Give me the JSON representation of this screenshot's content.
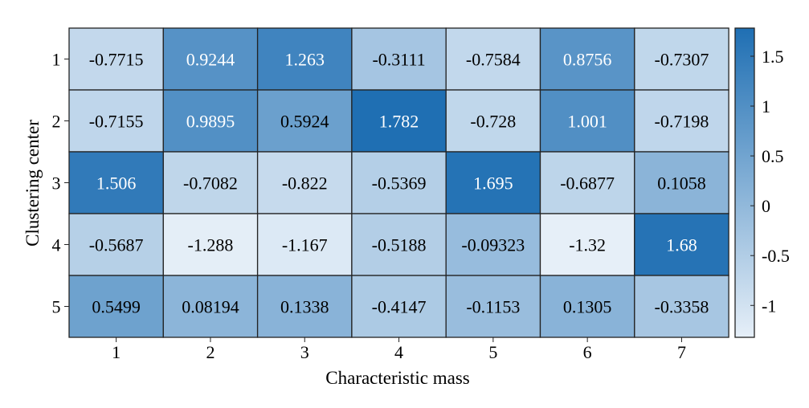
{
  "chart_data": {
    "type": "heatmap",
    "xlabel": "Characteristic mass",
    "ylabel": "Clustering center",
    "x_categories": [
      "1",
      "2",
      "3",
      "4",
      "5",
      "6",
      "7"
    ],
    "y_categories": [
      "1",
      "2",
      "3",
      "4",
      "5"
    ],
    "values": [
      [
        -0.7715,
        0.9244,
        1.263,
        -0.3111,
        -0.7584,
        0.8756,
        -0.7307
      ],
      [
        -0.7155,
        0.9895,
        0.5924,
        1.782,
        -0.728,
        1.001,
        -0.7198
      ],
      [
        1.506,
        -0.7082,
        -0.822,
        -0.5369,
        1.695,
        -0.6877,
        0.1058
      ],
      [
        -0.5687,
        -1.288,
        -1.167,
        -0.5188,
        -0.09323,
        -1.32,
        1.68
      ],
      [
        0.5499,
        0.08194,
        0.1338,
        -0.4147,
        -0.1153,
        0.1305,
        -0.3358
      ]
    ],
    "value_labels": [
      [
        "-0.7715",
        "0.9244",
        "1.263",
        "-0.3111",
        "-0.7584",
        "0.8756",
        "-0.7307"
      ],
      [
        "-0.7155",
        "0.9895",
        "0.5924",
        "1.782",
        "-0.728",
        "1.001",
        "-0.7198"
      ],
      [
        "1.506",
        "-0.7082",
        "-0.822",
        "-0.5369",
        "1.695",
        "-0.6877",
        "0.1058"
      ],
      [
        "-0.5687",
        "-1.288",
        "-1.167",
        "-0.5188",
        "-0.09323",
        "-1.32",
        "1.68"
      ],
      [
        "0.5499",
        "0.08194",
        "0.1338",
        "-0.4147",
        "-0.1153",
        "0.1305",
        "-0.3358"
      ]
    ],
    "colorbar": {
      "range": [
        -1.32,
        1.782
      ],
      "ticks": [
        -1,
        -0.5,
        0,
        0.5,
        1,
        1.5
      ],
      "tick_labels": [
        "-1",
        "-0.5",
        "0",
        "0.5",
        "1",
        "1.5"
      ],
      "color_low": "#e6eff8",
      "color_high": "#1f6fb3"
    },
    "grid": true,
    "legend": "right"
  }
}
